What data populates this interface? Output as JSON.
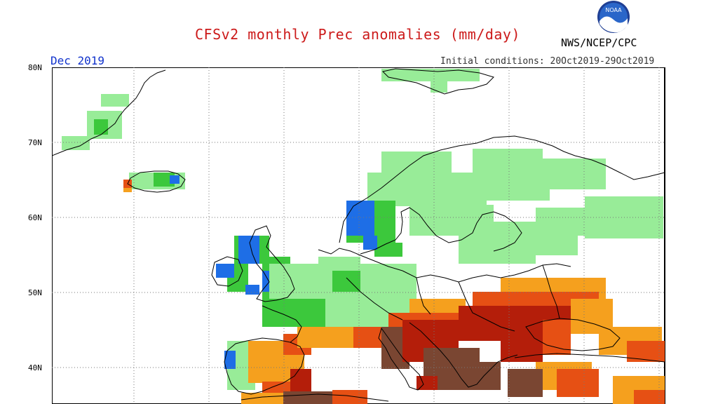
{
  "header": {
    "title": "CFSv2 monthly Prec anomalies (mm/day)",
    "month": "Dec 2019",
    "initial_conditions": "Initial conditions: 20Oct2019-29Oct2019",
    "agency": "NWS/NCEP/CPC",
    "logo_text": "NOAA"
  },
  "map": {
    "lat_labels": [
      "80N",
      "70N",
      "60N",
      "50N",
      "40N"
    ],
    "colors": {
      "wet_light": "#98ec98",
      "wet": "#3cc83c",
      "wet_strong": "#1e6ee6",
      "dry_light": "#f5a01e",
      "dry": "#e65014",
      "dry_strong": "#b41e0a",
      "dry_extreme": "#7a4632"
    }
  }
}
